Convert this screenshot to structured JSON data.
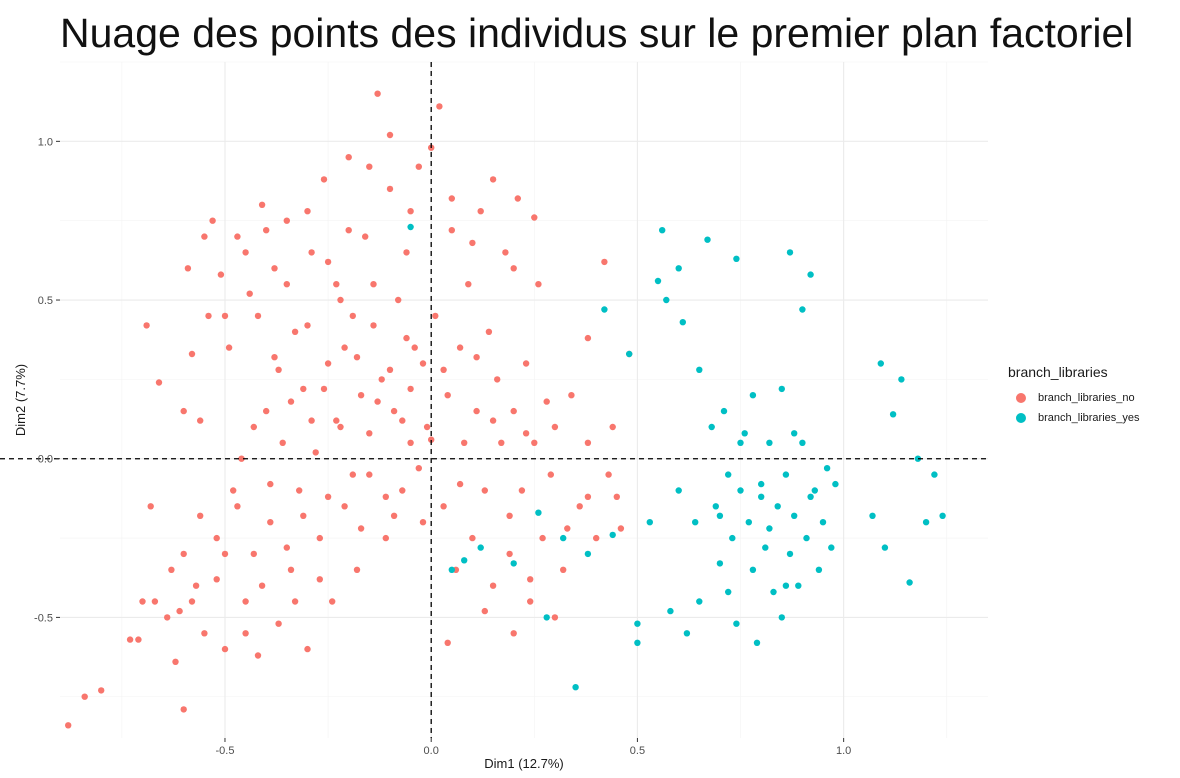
{
  "chart_data": {
    "type": "scatter",
    "title": "Nuage des points des individus sur le premier plan factoriel",
    "xlabel": "Dim1 (12.7%)",
    "ylabel": "Dim2 (7.7%)",
    "xlim": [
      -0.9,
      1.35
    ],
    "ylim": [
      -0.88,
      1.25
    ],
    "xticks": [
      {
        "value": -0.5,
        "label": "-0.5"
      },
      {
        "value": 0.0,
        "label": "0.0"
      },
      {
        "value": 0.5,
        "label": "0.5"
      },
      {
        "value": 1.0,
        "label": "1.0"
      }
    ],
    "yticks": [
      {
        "value": -0.5,
        "label": "-0.5"
      },
      {
        "value": 0.0,
        "label": "0.0"
      },
      {
        "value": 0.5,
        "label": "0.5"
      },
      {
        "value": 1.0,
        "label": "1.0"
      }
    ],
    "grid": true,
    "reference_lines": {
      "x": 0,
      "y": 0,
      "style": "dashed"
    },
    "legend": {
      "title": "branch_libraries",
      "placement": "right"
    },
    "series": [
      {
        "name": "branch_libraries_no",
        "color": "#F8766D",
        "points": [
          [
            -0.88,
            -0.84
          ],
          [
            -0.84,
            -0.75
          ],
          [
            -0.8,
            -0.73
          ],
          [
            -0.73,
            -0.57
          ],
          [
            -0.71,
            -0.57
          ],
          [
            -0.7,
            -0.45
          ],
          [
            -0.69,
            0.42
          ],
          [
            -0.68,
            -0.15
          ],
          [
            -0.67,
            -0.45
          ],
          [
            -0.66,
            0.24
          ],
          [
            -0.64,
            -0.5
          ],
          [
            -0.63,
            -0.35
          ],
          [
            -0.62,
            -0.64
          ],
          [
            -0.6,
            -0.79
          ],
          [
            -0.6,
            -0.3
          ],
          [
            -0.59,
            0.6
          ],
          [
            -0.58,
            0.33
          ],
          [
            -0.57,
            -0.4
          ],
          [
            -0.56,
            0.12
          ],
          [
            -0.55,
            -0.55
          ],
          [
            -0.54,
            0.45
          ],
          [
            -0.53,
            0.75
          ],
          [
            -0.52,
            -0.25
          ],
          [
            -0.51,
            0.58
          ],
          [
            -0.5,
            -0.6
          ],
          [
            -0.49,
            0.35
          ],
          [
            -0.48,
            -0.1
          ],
          [
            -0.47,
            0.7
          ],
          [
            -0.46,
            0.0
          ],
          [
            -0.45,
            -0.45
          ],
          [
            -0.44,
            0.52
          ],
          [
            -0.43,
            -0.3
          ],
          [
            -0.42,
            -0.62
          ],
          [
            -0.41,
            0.8
          ],
          [
            -0.4,
            0.15
          ],
          [
            -0.39,
            -0.2
          ],
          [
            -0.38,
            0.6
          ],
          [
            -0.37,
            -0.52
          ],
          [
            -0.36,
            0.05
          ],
          [
            -0.35,
            0.75
          ],
          [
            -0.34,
            -0.35
          ],
          [
            -0.33,
            0.4
          ],
          [
            -0.32,
            -0.1
          ],
          [
            -0.31,
            0.22
          ],
          [
            -0.3,
            -0.6
          ],
          [
            -0.29,
            0.65
          ],
          [
            -0.28,
            0.02
          ],
          [
            -0.27,
            -0.25
          ],
          [
            -0.26,
            0.88
          ],
          [
            -0.25,
            0.3
          ],
          [
            -0.24,
            -0.45
          ],
          [
            -0.23,
            0.55
          ],
          [
            -0.22,
            0.1
          ],
          [
            -0.21,
            -0.15
          ],
          [
            -0.2,
            0.95
          ],
          [
            -0.19,
            0.45
          ],
          [
            -0.18,
            -0.35
          ],
          [
            -0.17,
            0.2
          ],
          [
            -0.16,
            0.7
          ],
          [
            -0.15,
            -0.05
          ],
          [
            -0.14,
            0.55
          ],
          [
            -0.13,
            1.15
          ],
          [
            -0.12,
            0.25
          ],
          [
            -0.11,
            -0.25
          ],
          [
            -0.1,
            0.85
          ],
          [
            -0.09,
            0.15
          ],
          [
            -0.08,
            0.5
          ],
          [
            -0.07,
            -0.1
          ],
          [
            -0.06,
            0.65
          ],
          [
            -0.05,
            0.05
          ],
          [
            -0.04,
            0.35
          ],
          [
            -0.03,
            0.92
          ],
          [
            -0.02,
            -0.2
          ],
          [
            -0.01,
            0.1
          ],
          [
            0.01,
            0.45
          ],
          [
            0.02,
            1.11
          ],
          [
            0.03,
            -0.15
          ],
          [
            0.04,
            0.2
          ],
          [
            0.05,
            0.72
          ],
          [
            0.06,
            -0.35
          ],
          [
            0.07,
            0.35
          ],
          [
            0.08,
            0.05
          ],
          [
            0.09,
            0.55
          ],
          [
            0.1,
            -0.25
          ],
          [
            0.11,
            0.15
          ],
          [
            0.12,
            0.78
          ],
          [
            0.13,
            -0.1
          ],
          [
            0.14,
            0.4
          ],
          [
            0.15,
            -0.4
          ],
          [
            0.16,
            0.25
          ],
          [
            0.17,
            0.05
          ],
          [
            0.18,
            0.65
          ],
          [
            0.19,
            -0.3
          ],
          [
            0.2,
            0.15
          ],
          [
            0.21,
            0.82
          ],
          [
            0.22,
            -0.1
          ],
          [
            0.23,
            0.3
          ],
          [
            0.24,
            -0.45
          ],
          [
            0.25,
            0.05
          ],
          [
            0.26,
            0.55
          ],
          [
            0.27,
            -0.25
          ],
          [
            0.28,
            0.18
          ],
          [
            0.29,
            -0.05
          ],
          [
            0.3,
            0.1
          ],
          [
            0.32,
            -0.35
          ],
          [
            0.34,
            0.2
          ],
          [
            0.36,
            -0.15
          ],
          [
            0.38,
            0.38
          ],
          [
            0.4,
            -0.25
          ],
          [
            0.42,
            0.62
          ],
          [
            0.44,
            0.1
          ],
          [
            0.46,
            -0.22
          ],
          [
            0.48,
            0.33
          ],
          [
            -0.58,
            -0.45
          ],
          [
            -0.52,
            -0.38
          ],
          [
            -0.47,
            -0.15
          ],
          [
            -0.43,
            0.1
          ],
          [
            -0.39,
            -0.08
          ],
          [
            -0.35,
            -0.28
          ],
          [
            -0.31,
            -0.18
          ],
          [
            -0.27,
            -0.38
          ],
          [
            -0.23,
            0.12
          ],
          [
            -0.19,
            -0.05
          ],
          [
            -0.15,
            0.08
          ],
          [
            -0.11,
            -0.12
          ],
          [
            -0.07,
            0.12
          ],
          [
            -0.03,
            -0.03
          ],
          [
            0.0,
            0.06
          ],
          [
            -0.61,
            -0.48
          ],
          [
            -0.56,
            -0.18
          ],
          [
            -0.5,
            -0.3
          ],
          [
            -0.45,
            -0.55
          ],
          [
            -0.41,
            -0.4
          ],
          [
            -0.37,
            0.28
          ],
          [
            -0.33,
            -0.45
          ],
          [
            -0.29,
            0.12
          ],
          [
            -0.25,
            -0.12
          ],
          [
            -0.21,
            0.35
          ],
          [
            -0.17,
            -0.22
          ],
          [
            -0.13,
            0.18
          ],
          [
            -0.09,
            -0.18
          ],
          [
            -0.05,
            0.22
          ],
          [
            0.03,
            0.28
          ],
          [
            0.07,
            -0.08
          ],
          [
            0.11,
            0.32
          ],
          [
            0.15,
            0.12
          ],
          [
            0.19,
            -0.18
          ],
          [
            0.23,
            0.08
          ],
          [
            -0.6,
            0.15
          ],
          [
            -0.55,
            0.7
          ],
          [
            -0.5,
            0.45
          ],
          [
            -0.45,
            0.65
          ],
          [
            -0.4,
            0.72
          ],
          [
            -0.35,
            0.55
          ],
          [
            -0.3,
            0.78
          ],
          [
            -0.25,
            0.62
          ],
          [
            -0.2,
            0.72
          ],
          [
            -0.15,
            0.92
          ],
          [
            -0.1,
            1.02
          ],
          [
            -0.05,
            0.78
          ],
          [
            0.0,
            0.98
          ],
          [
            0.05,
            0.82
          ],
          [
            0.1,
            0.68
          ],
          [
            0.15,
            0.88
          ],
          [
            0.2,
            0.6
          ],
          [
            0.25,
            0.76
          ],
          [
            -0.42,
            0.45
          ],
          [
            -0.38,
            0.32
          ],
          [
            -0.34,
            0.18
          ],
          [
            -0.3,
            0.42
          ],
          [
            -0.26,
            0.22
          ],
          [
            -0.22,
            0.5
          ],
          [
            -0.18,
            0.32
          ],
          [
            -0.14,
            0.42
          ],
          [
            -0.1,
            0.28
          ],
          [
            -0.06,
            0.38
          ],
          [
            -0.02,
            0.3
          ],
          [
            0.04,
            -0.58
          ],
          [
            0.13,
            -0.48
          ],
          [
            0.2,
            -0.55
          ],
          [
            0.24,
            -0.38
          ],
          [
            0.3,
            -0.5
          ],
          [
            0.33,
            -0.22
          ],
          [
            0.38,
            -0.12
          ],
          [
            0.45,
            -0.12
          ],
          [
            0.38,
            0.05
          ],
          [
            0.43,
            -0.05
          ]
        ]
      },
      {
        "name": "branch_libraries_yes",
        "color": "#00BFC4",
        "points": [
          [
            -0.05,
            0.73
          ],
          [
            0.05,
            -0.35
          ],
          [
            0.08,
            -0.32
          ],
          [
            0.12,
            -0.28
          ],
          [
            0.2,
            -0.33
          ],
          [
            0.26,
            -0.17
          ],
          [
            0.28,
            -0.5
          ],
          [
            0.32,
            -0.25
          ],
          [
            0.35,
            -0.72
          ],
          [
            0.38,
            -0.3
          ],
          [
            0.42,
            0.47
          ],
          [
            0.44,
            -0.24
          ],
          [
            0.48,
            0.33
          ],
          [
            0.5,
            -0.52
          ],
          [
            0.5,
            -0.58
          ],
          [
            0.53,
            -0.2
          ],
          [
            0.55,
            0.56
          ],
          [
            0.56,
            0.72
          ],
          [
            0.57,
            0.5
          ],
          [
            0.58,
            -0.48
          ],
          [
            0.6,
            -0.1
          ],
          [
            0.6,
            0.6
          ],
          [
            0.61,
            0.43
          ],
          [
            0.62,
            -0.55
          ],
          [
            0.64,
            -0.2
          ],
          [
            0.65,
            -0.45
          ],
          [
            0.65,
            0.28
          ],
          [
            0.67,
            0.69
          ],
          [
            0.68,
            0.1
          ],
          [
            0.69,
            -0.15
          ],
          [
            0.7,
            -0.33
          ],
          [
            0.71,
            0.15
          ],
          [
            0.72,
            -0.05
          ],
          [
            0.73,
            -0.25
          ],
          [
            0.74,
            -0.52
          ],
          [
            0.74,
            0.63
          ],
          [
            0.75,
            -0.1
          ],
          [
            0.76,
            0.08
          ],
          [
            0.77,
            -0.2
          ],
          [
            0.78,
            -0.35
          ],
          [
            0.78,
            0.2
          ],
          [
            0.79,
            -0.58
          ],
          [
            0.8,
            -0.12
          ],
          [
            0.81,
            -0.28
          ],
          [
            0.82,
            0.05
          ],
          [
            0.83,
            -0.42
          ],
          [
            0.84,
            -0.15
          ],
          [
            0.85,
            0.22
          ],
          [
            0.85,
            -0.5
          ],
          [
            0.86,
            -0.05
          ],
          [
            0.87,
            -0.3
          ],
          [
            0.87,
            0.65
          ],
          [
            0.88,
            -0.18
          ],
          [
            0.89,
            -0.4
          ],
          [
            0.9,
            0.05
          ],
          [
            0.9,
            0.47
          ],
          [
            0.91,
            -0.25
          ],
          [
            0.92,
            0.58
          ],
          [
            0.93,
            -0.1
          ],
          [
            0.94,
            -0.35
          ],
          [
            0.95,
            -0.2
          ],
          [
            0.96,
            -0.03
          ],
          [
            0.97,
            -0.28
          ],
          [
            0.98,
            -0.08
          ],
          [
            1.07,
            -0.18
          ],
          [
            1.09,
            0.3
          ],
          [
            1.1,
            -0.28
          ],
          [
            1.12,
            0.14
          ],
          [
            1.14,
            0.25
          ],
          [
            1.16,
            -0.39
          ],
          [
            1.18,
            0.0
          ],
          [
            1.2,
            -0.2
          ],
          [
            1.22,
            -0.05
          ],
          [
            1.24,
            -0.18
          ],
          [
            0.7,
            -0.18
          ],
          [
            0.72,
            -0.42
          ],
          [
            0.75,
            0.05
          ],
          [
            0.8,
            -0.08
          ],
          [
            0.82,
            -0.22
          ],
          [
            0.86,
            -0.4
          ],
          [
            0.88,
            0.08
          ],
          [
            0.92,
            -0.12
          ]
        ]
      }
    ]
  }
}
